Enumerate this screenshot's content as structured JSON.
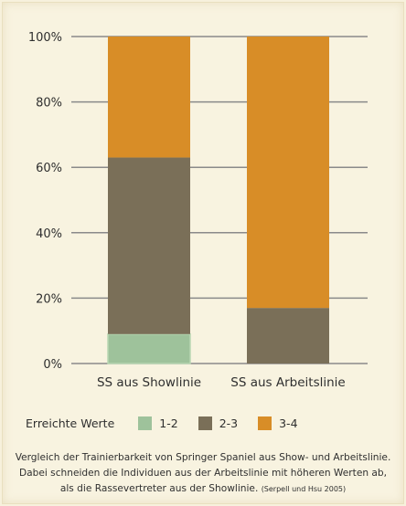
{
  "chart_data": {
    "type": "bar",
    "stacked": true,
    "categories": [
      "SS aus Showlinie",
      "SS aus Arbeitslinie"
    ],
    "series": [
      {
        "name": "1-2",
        "values": [
          9,
          0
        ],
        "color": "#9ec29b"
      },
      {
        "name": "2-3",
        "values": [
          54,
          17
        ],
        "color": "#7a6f58"
      },
      {
        "name": "3-4",
        "values": [
          37,
          83
        ],
        "color": "#d88d27"
      }
    ],
    "ylim": [
      0,
      100
    ],
    "yticks": [
      "0%",
      "20%",
      "40%",
      "60%",
      "80%",
      "100%"
    ],
    "ytick_values": [
      0,
      20,
      40,
      60,
      80,
      100
    ],
    "grid": true,
    "legend_title": "Erreichte Werte",
    "legend_labels": [
      "1-2",
      "2-3",
      "3-4"
    ],
    "legend_position": "bottom"
  },
  "caption": {
    "text": "Vergleich der Trainierbarkeit von Springer Spaniel aus Show- und Arbeitslinie. Dabei schneiden die Individuen aus der Arbeitslinie mit höheren Werten ab, als die Rassevertreter aus der Showlinie.",
    "citation": "(Serpell und Hsu 2005)"
  }
}
